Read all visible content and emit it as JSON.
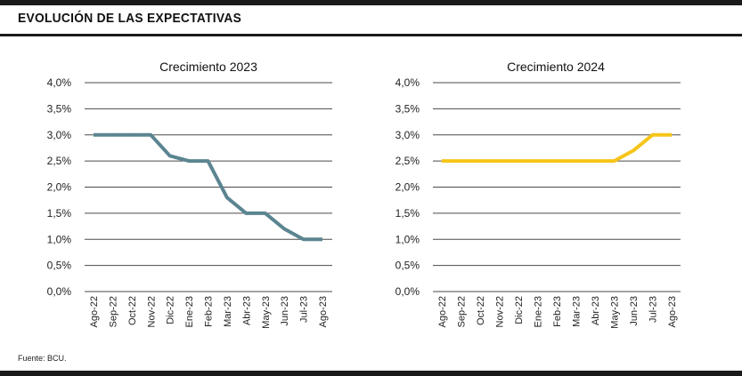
{
  "header": {
    "title": "EVOLUCIÓN DE LAS EXPECTATIVAS"
  },
  "footer": {
    "source": "Fuente: BCU."
  },
  "chart_data": [
    {
      "type": "line",
      "title": "Crecimiento 2023",
      "categories": [
        "Ago-22",
        "Sep-22",
        "Oct-22",
        "Nov-22",
        "Dic-22",
        "Ene-23",
        "Feb-23",
        "Mar-23",
        "Abr-23",
        "May-23",
        "Jun-23",
        "Jul-23",
        "Ago-23"
      ],
      "series": [
        {
          "values": [
            3.0,
            3.0,
            3.0,
            3.0,
            2.6,
            2.5,
            2.5,
            1.8,
            1.5,
            1.5,
            1.2,
            1.0,
            1.0
          ],
          "color": "#5b8590"
        }
      ],
      "ylim": [
        0,
        4.0
      ],
      "yticks": [
        "0,0%",
        "0,5%",
        "1,0%",
        "1,5%",
        "2,0%",
        "2,5%",
        "3,0%",
        "3,5%",
        "4,0%"
      ],
      "grid": true
    },
    {
      "type": "line",
      "title": "Crecimiento 2024",
      "categories": [
        "Ago-22",
        "Sep-22",
        "Oct-22",
        "Nov-22",
        "Dic-22",
        "Ene-23",
        "Feb-23",
        "Mar-23",
        "Abr-23",
        "May-23",
        "Jun-23",
        "Jul-23",
        "Ago-23"
      ],
      "series": [
        {
          "values": [
            2.5,
            2.5,
            2.5,
            2.5,
            2.5,
            2.5,
            2.5,
            2.5,
            2.5,
            2.5,
            2.7,
            3.0,
            3.0
          ],
          "color": "#f5c518"
        }
      ],
      "ylim": [
        0,
        4.0
      ],
      "yticks": [
        "0,0%",
        "0,5%",
        "1,0%",
        "1,5%",
        "2,0%",
        "2,5%",
        "3,0%",
        "3,5%",
        "4,0%"
      ],
      "grid": true
    }
  ]
}
